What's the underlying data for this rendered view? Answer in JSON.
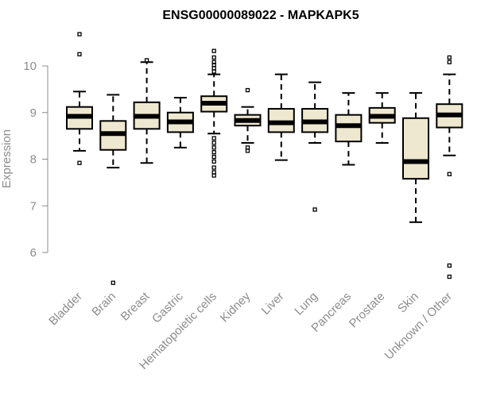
{
  "chart_data": {
    "type": "boxplot",
    "title": "ENSG00000089022 - MAPKAPK5",
    "ylabel": "Expression",
    "ylim": [
      5.1,
      10.7
    ],
    "yticks": [
      6,
      7,
      8,
      9,
      10
    ],
    "fill_color": "#efe8d0",
    "axis_color": "#8c8c8c",
    "categories": [
      "Bladder",
      "Brain",
      "Breast",
      "Gastric",
      "Hematopoietic cells",
      "Kidney",
      "Liver",
      "Lung",
      "Pancreas",
      "Prostate",
      "Skin",
      "Unknown / Other"
    ],
    "boxes": [
      {
        "name": "Bladder",
        "q1": 8.65,
        "median": 8.92,
        "q3": 9.12,
        "whisker_low": 8.18,
        "whisker_high": 9.45,
        "outliers": [
          10.68,
          10.25,
          7.92
        ]
      },
      {
        "name": "Brain",
        "q1": 8.2,
        "median": 8.55,
        "q3": 8.82,
        "whisker_low": 7.82,
        "whisker_high": 9.38,
        "outliers": [
          5.35
        ]
      },
      {
        "name": "Breast",
        "q1": 8.65,
        "median": 8.92,
        "q3": 9.22,
        "whisker_low": 7.92,
        "whisker_high": 10.08,
        "outliers": [
          10.12
        ]
      },
      {
        "name": "Gastric",
        "q1": 8.58,
        "median": 8.8,
        "q3": 9.0,
        "whisker_low": 8.25,
        "whisker_high": 9.32,
        "outliers": []
      },
      {
        "name": "Hematopoietic cells",
        "q1": 9.02,
        "median": 9.2,
        "q3": 9.35,
        "whisker_low": 8.55,
        "whisker_high": 9.82,
        "outliers": [
          10.32,
          10.18,
          10.08,
          10.02,
          9.95,
          9.88,
          8.45,
          8.35,
          8.25,
          8.15,
          8.05,
          7.95,
          7.82,
          7.72,
          7.65
        ]
      },
      {
        "name": "Kidney",
        "q1": 8.72,
        "median": 8.83,
        "q3": 8.95,
        "whisker_low": 8.35,
        "whisker_high": 9.12,
        "outliers": [
          9.48,
          8.25,
          8.18
        ]
      },
      {
        "name": "Liver",
        "q1": 8.58,
        "median": 8.78,
        "q3": 9.08,
        "whisker_low": 7.98,
        "whisker_high": 9.82,
        "outliers": []
      },
      {
        "name": "Lung",
        "q1": 8.58,
        "median": 8.8,
        "q3": 9.08,
        "whisker_low": 8.35,
        "whisker_high": 9.65,
        "outliers": [
          6.92
        ]
      },
      {
        "name": "Pancreas",
        "q1": 8.38,
        "median": 8.72,
        "q3": 8.95,
        "whisker_low": 7.88,
        "whisker_high": 9.42,
        "outliers": []
      },
      {
        "name": "Prostate",
        "q1": 8.78,
        "median": 8.92,
        "q3": 9.1,
        "whisker_low": 8.35,
        "whisker_high": 9.42,
        "outliers": []
      },
      {
        "name": "Skin",
        "q1": 7.58,
        "median": 7.95,
        "q3": 8.88,
        "whisker_low": 6.65,
        "whisker_high": 9.42,
        "outliers": []
      },
      {
        "name": "Unknown / Other",
        "q1": 8.68,
        "median": 8.95,
        "q3": 9.18,
        "whisker_low": 8.08,
        "whisker_high": 9.82,
        "outliers": [
          10.18,
          10.08,
          7.68,
          5.72,
          5.48
        ]
      }
    ]
  }
}
